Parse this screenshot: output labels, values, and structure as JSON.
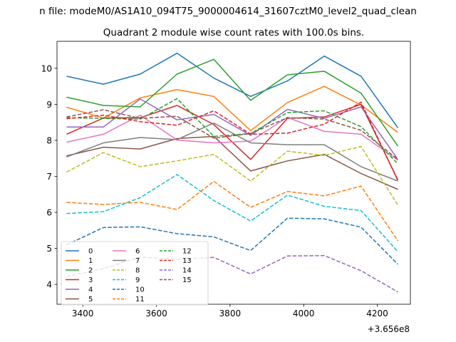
{
  "chart_data": {
    "type": "line",
    "suptitle": "n file: modeM0/AS1A10_094T75_9000004614_31607cztM0_level2_quad_clean",
    "title": "Quadrant 2 module wise count rates with 100.0s bins.",
    "xlabel": "",
    "ylabel": "",
    "x_offset_label": "+3.656e8",
    "xlim": [
      3330,
      4290
    ],
    "ylim": [
      3.45,
      10.75
    ],
    "x_ticks": [
      3400,
      3600,
      3800,
      4000,
      4200
    ],
    "y_ticks": [
      4,
      5,
      6,
      7,
      8,
      9,
      10
    ],
    "x": [
      3356,
      3456,
      3556,
      3656,
      3756,
      3856,
      3956,
      4056,
      4156,
      4256
    ],
    "legend_position": "lower-left",
    "series": [
      {
        "name": "0",
        "color": "#1f77b4",
        "dash": "solid",
        "values": [
          9.78,
          9.56,
          9.84,
          10.42,
          9.73,
          9.22,
          9.65,
          10.34,
          9.78,
          8.35
        ]
      },
      {
        "name": "1",
        "color": "#ff7f0e",
        "dash": "solid",
        "values": [
          8.92,
          8.62,
          9.18,
          9.41,
          9.22,
          8.27,
          9.05,
          9.5,
          8.98,
          8.22
        ]
      },
      {
        "name": "2",
        "color": "#2ca02c",
        "dash": "solid",
        "values": [
          9.2,
          8.97,
          8.93,
          9.84,
          10.25,
          9.11,
          9.82,
          9.92,
          9.31,
          7.84
        ]
      },
      {
        "name": "3",
        "color": "#d62728",
        "dash": "solid",
        "values": [
          8.17,
          8.62,
          8.63,
          8.97,
          8.44,
          7.47,
          8.61,
          8.65,
          9.0,
          6.9
        ]
      },
      {
        "name": "4",
        "color": "#9467bd",
        "dash": "solid",
        "values": [
          8.37,
          8.37,
          9.15,
          8.57,
          8.72,
          8.14,
          8.86,
          8.61,
          8.93,
          7.47
        ]
      },
      {
        "name": "5",
        "color": "#8c564b",
        "dash": "solid",
        "values": [
          7.57,
          7.81,
          7.76,
          8.05,
          8.11,
          7.15,
          7.43,
          7.61,
          7.08,
          6.64
        ]
      },
      {
        "name": "6",
        "color": "#e377c2",
        "dash": "solid",
        "values": [
          7.95,
          8.17,
          8.7,
          8.01,
          7.93,
          7.98,
          8.64,
          8.25,
          8.17,
          7.45
        ]
      },
      {
        "name": "7",
        "color": "#7f7f7f",
        "dash": "solid",
        "values": [
          7.54,
          7.93,
          8.08,
          8.02,
          8.48,
          7.93,
          7.88,
          7.88,
          7.27,
          6.87
        ]
      },
      {
        "name": "8",
        "color": "#bcbd22",
        "dash": "dashed",
        "values": [
          7.12,
          7.66,
          7.27,
          7.43,
          7.61,
          6.87,
          7.7,
          7.58,
          7.83,
          6.2
        ]
      },
      {
        "name": "9",
        "color": "#17becf",
        "dash": "dashed",
        "values": [
          5.97,
          6.02,
          6.41,
          7.05,
          6.33,
          5.76,
          6.48,
          6.17,
          6.05,
          4.91
        ]
      },
      {
        "name": "10",
        "color": "#1f77b4",
        "dash": "dashed",
        "values": [
          5.1,
          5.58,
          5.6,
          5.41,
          5.32,
          4.94,
          5.84,
          5.82,
          5.59,
          4.56
        ]
      },
      {
        "name": "11",
        "color": "#ff7f0e",
        "dash": "dashed",
        "values": [
          6.28,
          6.22,
          6.28,
          6.08,
          6.86,
          6.14,
          6.58,
          6.46,
          6.73,
          5.21
        ]
      },
      {
        "name": "12",
        "color": "#2ca02c",
        "dash": "dashed",
        "values": [
          8.63,
          8.61,
          8.59,
          9.16,
          8.11,
          8.19,
          8.77,
          8.82,
          8.38,
          7.35
        ]
      },
      {
        "name": "13",
        "color": "#d62728",
        "dash": "dashed",
        "values": [
          8.6,
          8.7,
          8.52,
          8.42,
          8.82,
          8.17,
          8.2,
          8.45,
          9.06,
          6.88
        ]
      },
      {
        "name": "14",
        "color": "#9467bd",
        "dash": "dashed",
        "values": [
          4.22,
          4.44,
          4.76,
          4.7,
          4.75,
          4.29,
          4.79,
          4.8,
          4.38,
          3.79
        ]
      },
      {
        "name": "15",
        "color": "#8c564b",
        "dash": "dashed",
        "values": [
          8.65,
          8.85,
          8.61,
          8.67,
          8.06,
          8.19,
          8.63,
          8.59,
          8.28,
          7.47
        ]
      }
    ]
  }
}
